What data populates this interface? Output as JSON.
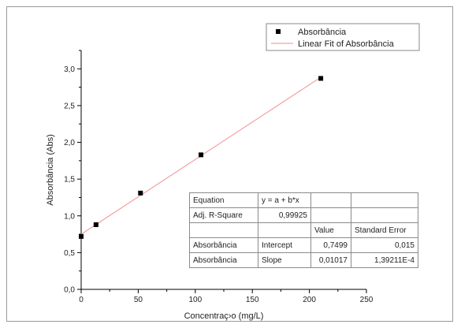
{
  "chart_data": {
    "type": "scatter",
    "xlabel": "Concentraç›o (mg/L)",
    "ylabel": "Absorbância (Abs)",
    "xlim": [
      0,
      250
    ],
    "ylim": [
      0,
      3.25
    ],
    "xticks": [
      0,
      50,
      100,
      150,
      200,
      250
    ],
    "xtick_labels": [
      "0",
      "50",
      "100",
      "150",
      "200",
      "250"
    ],
    "yticks": [
      0,
      0.5,
      1.0,
      1.5,
      2.0,
      2.5,
      3.0
    ],
    "ytick_labels": [
      "0,0",
      "0,5",
      "1,0",
      "1,5",
      "2,0",
      "2,5",
      "3,0"
    ],
    "grid": false,
    "legend_position": "top-right",
    "series": [
      {
        "name": "Absorbância",
        "kind": "scatter",
        "marker": "square",
        "color": "#000000",
        "x": [
          0,
          13,
          52,
          105,
          210
        ],
        "y": [
          0.72,
          0.88,
          1.31,
          1.83,
          2.87
        ]
      },
      {
        "name": "Linear Fit of Absorbância",
        "kind": "line",
        "color": "#f4a0a0",
        "intercept": 0.7499,
        "slope": 0.01017,
        "x_range": [
          0,
          210
        ]
      }
    ],
    "fit_table": {
      "rows": [
        [
          "Equation",
          "y = a + b*x",
          "",
          ""
        ],
        [
          "Adj. R-Square",
          "0,99925",
          "",
          ""
        ],
        [
          "",
          "",
          "Value",
          "Standard Error"
        ],
        [
          "Absorbância",
          "Intercept",
          "0,7499",
          "0,015"
        ],
        [
          "Absorbância",
          "Slope",
          "0,01017",
          "1,39211E-4"
        ]
      ]
    }
  }
}
